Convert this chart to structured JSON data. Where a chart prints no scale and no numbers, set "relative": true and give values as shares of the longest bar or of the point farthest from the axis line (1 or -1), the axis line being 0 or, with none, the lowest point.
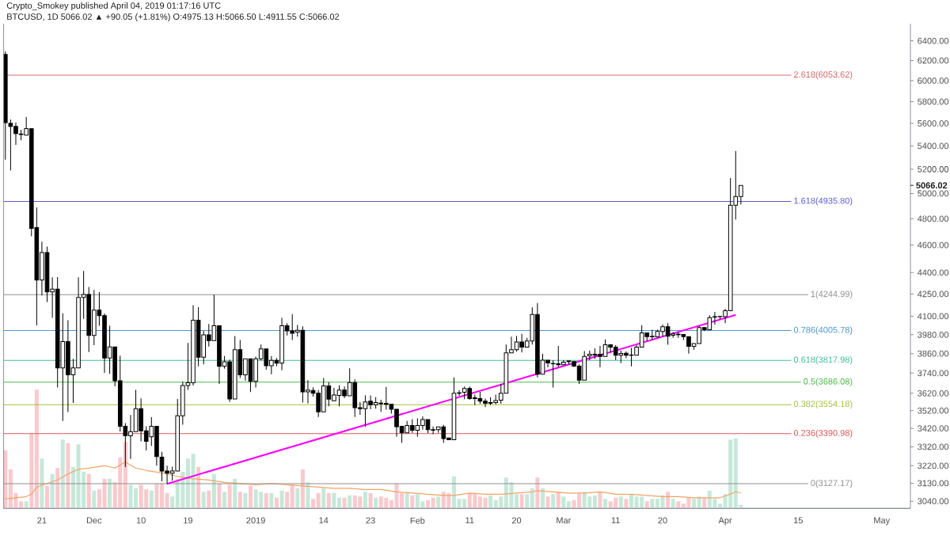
{
  "chart_data": [
    {
      "type": "candlestick",
      "title": "Crypto_Smokey published April 04, 2019 01:17:16 UTC",
      "subtitle": "BTCUSD, 1D 5066.02 ▲ +90.05 (+1.81%) O:4975.13 H:5066.50 L:4911.55 C:5066.02",
      "x": [
        "2018-11-14",
        "2018-11-15",
        "2018-11-16",
        "2018-11-17",
        "2018-11-18",
        "2018-11-19",
        "2018-11-20",
        "2018-11-21",
        "2018-11-22",
        "2018-11-23",
        "2018-11-24",
        "2018-11-25",
        "2018-11-26",
        "2018-11-27",
        "2018-11-28",
        "2018-11-29",
        "2018-11-30",
        "2018-12-01",
        "2018-12-02",
        "2018-12-03",
        "2018-12-04",
        "2018-12-05",
        "2018-12-06",
        "2018-12-07",
        "2018-12-08",
        "2018-12-09",
        "2018-12-10",
        "2018-12-11",
        "2018-12-12",
        "2018-12-13",
        "2018-12-14",
        "2018-12-15",
        "2018-12-16",
        "2018-12-17",
        "2018-12-18",
        "2018-12-19",
        "2018-12-20",
        "2018-12-21",
        "2018-12-22",
        "2018-12-23",
        "2018-12-24",
        "2018-12-25",
        "2018-12-26",
        "2018-12-27",
        "2018-12-28",
        "2018-12-29",
        "2018-12-30",
        "2018-12-31",
        "2019-01-01",
        "2019-01-02",
        "2019-01-03",
        "2019-01-04",
        "2019-01-05",
        "2019-01-06",
        "2019-01-07",
        "2019-01-08",
        "2019-01-09",
        "2019-01-10",
        "2019-01-11",
        "2019-01-12",
        "2019-01-13",
        "2019-01-14",
        "2019-01-15",
        "2019-01-16",
        "2019-01-17",
        "2019-01-18",
        "2019-01-19",
        "2019-01-20",
        "2019-01-21",
        "2019-01-22",
        "2019-01-23",
        "2019-01-24",
        "2019-01-25",
        "2019-01-26",
        "2019-01-27",
        "2019-01-28",
        "2019-01-29",
        "2019-01-30",
        "2019-01-31",
        "2019-02-01",
        "2019-02-02",
        "2019-02-03",
        "2019-02-04",
        "2019-02-05",
        "2019-02-06",
        "2019-02-07",
        "2019-02-08",
        "2019-02-09",
        "2019-02-10",
        "2019-02-11",
        "2019-02-12",
        "2019-02-13",
        "2019-02-14",
        "2019-02-15",
        "2019-02-16",
        "2019-02-17",
        "2019-02-18",
        "2019-02-19",
        "2019-02-20",
        "2019-02-21",
        "2019-02-22",
        "2019-02-23",
        "2019-02-24",
        "2019-02-25",
        "2019-02-26",
        "2019-02-27",
        "2019-02-28",
        "2019-03-01",
        "2019-03-02",
        "2019-03-03",
        "2019-03-04",
        "2019-03-05",
        "2019-03-06",
        "2019-03-07",
        "2019-03-08",
        "2019-03-09",
        "2019-03-10",
        "2019-03-11",
        "2019-03-12",
        "2019-03-13",
        "2019-03-14",
        "2019-03-15",
        "2019-03-16",
        "2019-03-17",
        "2019-03-18",
        "2019-03-19",
        "2019-03-20",
        "2019-03-21",
        "2019-03-22",
        "2019-03-23",
        "2019-03-24",
        "2019-03-25",
        "2019-03-26",
        "2019-03-27",
        "2019-03-28",
        "2019-03-29",
        "2019-03-30",
        "2019-03-31",
        "2019-04-01",
        "2019-04-02",
        "2019-04-03",
        "2019-04-04"
      ],
      "ohlc": [
        [
          6260,
          6290,
          5280,
          5607
        ],
        [
          5600,
          5636,
          5190,
          5573
        ],
        [
          5573,
          5608,
          5409,
          5508
        ],
        [
          5505,
          5542,
          5449,
          5500
        ],
        [
          5495,
          5658,
          5495,
          5552
        ],
        [
          5552,
          5552,
          4666,
          4726
        ],
        [
          4731,
          4889,
          4040,
          4347
        ],
        [
          4347,
          4626,
          4240,
          4545
        ],
        [
          4545,
          4588,
          4195,
          4265
        ],
        [
          4265,
          4366,
          4089,
          4284
        ],
        [
          4284,
          4368,
          3654,
          3772
        ],
        [
          3772,
          4120,
          3461,
          3936
        ],
        [
          3936,
          4073,
          3512,
          3730
        ],
        [
          3730,
          3828,
          3564,
          3772
        ],
        [
          3772,
          4366,
          3772,
          4226
        ],
        [
          4226,
          4411,
          4083,
          4247
        ],
        [
          4247,
          4299,
          3869,
          3975
        ],
        [
          3975,
          4278,
          3913,
          4140
        ],
        [
          4140,
          4263,
          4037,
          4104
        ],
        [
          4104,
          4118,
          3742,
          3832
        ],
        [
          3832,
          4037,
          3735,
          3902
        ],
        [
          3902,
          3902,
          3661,
          3694
        ],
        [
          3694,
          3847,
          3402,
          3432
        ],
        [
          3432,
          3449,
          3213,
          3379
        ],
        [
          3379,
          3495,
          3255,
          3402
        ],
        [
          3402,
          3640,
          3402,
          3531
        ],
        [
          3531,
          3590,
          3349,
          3407
        ],
        [
          3407,
          3432,
          3300,
          3349
        ],
        [
          3374,
          3483,
          3325,
          3432
        ],
        [
          3432,
          3432,
          3220,
          3268
        ],
        [
          3265,
          3293,
          3140,
          3192
        ],
        [
          3192,
          3220,
          3127,
          3181
        ],
        [
          3181,
          3215,
          3143,
          3192
        ],
        [
          3192,
          3587,
          3192,
          3491
        ],
        [
          3491,
          3688,
          3441,
          3666
        ],
        [
          3666,
          3927,
          3640,
          3682
        ],
        [
          3682,
          4174,
          3666,
          4073
        ],
        [
          4073,
          4160,
          3782,
          3837
        ],
        [
          3837,
          4004,
          3794,
          3979
        ],
        [
          3979,
          4049,
          3904,
          3942
        ],
        [
          3942,
          4245,
          3942,
          4037
        ],
        [
          4037,
          4037,
          3675,
          3782
        ],
        [
          3782,
          3845,
          3767,
          3809
        ],
        [
          3809,
          3822,
          3569,
          3587
        ],
        [
          3587,
          3971,
          3587,
          3885
        ],
        [
          3885,
          3946,
          3711,
          3730
        ],
        [
          3730,
          3828,
          3694,
          3828
        ],
        [
          3828,
          3828,
          3627,
          3690
        ],
        [
          3690,
          3841,
          3654,
          3828
        ],
        [
          3828,
          3917,
          3818,
          3889
        ],
        [
          3889,
          3889,
          3761,
          3785
        ],
        [
          3785,
          3845,
          3733,
          3818
        ],
        [
          3818,
          3832,
          3782,
          3800
        ],
        [
          3800,
          4089,
          3757,
          4037
        ],
        [
          4037,
          4054,
          3975,
          4004
        ],
        [
          4004,
          4114,
          3946,
          3990
        ],
        [
          3997,
          4042,
          3968,
          4007
        ],
        [
          4007,
          4033,
          3566,
          3628
        ],
        [
          3628,
          3698,
          3562,
          3639
        ],
        [
          3636,
          3655,
          3601,
          3620
        ],
        [
          3620,
          3639,
          3484,
          3513
        ],
        [
          3513,
          3711,
          3513,
          3663
        ],
        [
          3663,
          3686,
          3544,
          3586
        ],
        [
          3577,
          3652,
          3577,
          3609
        ],
        [
          3607,
          3667,
          3544,
          3639
        ],
        [
          3639,
          3660,
          3592,
          3605
        ],
        [
          3605,
          3770,
          3605,
          3683
        ],
        [
          3683,
          3702,
          3484,
          3536
        ],
        [
          3536,
          3570,
          3496,
          3531
        ],
        [
          3531,
          3607,
          3428,
          3570
        ],
        [
          3574,
          3607,
          3528,
          3554
        ],
        [
          3554,
          3597,
          3531,
          3566
        ],
        [
          3563,
          3582,
          3513,
          3559
        ],
        [
          3562,
          3657,
          3525,
          3556
        ],
        [
          3556,
          3556,
          3503,
          3528
        ],
        [
          3528,
          3528,
          3374,
          3429
        ],
        [
          3432,
          3432,
          3341,
          3396
        ],
        [
          3396,
          3462,
          3396,
          3436
        ],
        [
          3436,
          3472,
          3396,
          3410
        ],
        [
          3410,
          3476,
          3374,
          3436
        ],
        [
          3436,
          3487,
          3413,
          3469
        ],
        [
          3469,
          3469,
          3393,
          3413
        ],
        [
          3413,
          3431,
          3388,
          3410
        ],
        [
          3413,
          3428,
          3396,
          3428
        ],
        [
          3428,
          3440,
          3341,
          3364
        ],
        [
          3367,
          3367,
          3358,
          3358
        ],
        [
          3358,
          3714,
          3358,
          3620
        ],
        [
          3620,
          3639,
          3605,
          3623
        ],
        [
          3626,
          3660,
          3586,
          3648
        ],
        [
          3648,
          3660,
          3582,
          3589
        ],
        [
          3594,
          3612,
          3551,
          3589
        ],
        [
          3589,
          3628,
          3559,
          3574
        ],
        [
          3574,
          3589,
          3540,
          3562
        ],
        [
          3562,
          3597,
          3551,
          3566
        ],
        [
          3566,
          3612,
          3556,
          3578
        ],
        [
          3580,
          3674,
          3559,
          3620
        ],
        [
          3620,
          3917,
          3620,
          3865
        ],
        [
          3865,
          3968,
          3865,
          3884
        ],
        [
          3884,
          3973,
          3872,
          3934
        ],
        [
          3934,
          3985,
          3867,
          3901
        ],
        [
          3901,
          3960,
          3901,
          3939
        ],
        [
          3939,
          4159,
          3917,
          4111
        ],
        [
          4111,
          4189,
          3714,
          3733
        ],
        [
          3733,
          3860,
          3733,
          3819
        ],
        [
          3819,
          3819,
          3775,
          3802
        ],
        [
          3797,
          3819,
          3654,
          3799
        ],
        [
          3797,
          3909,
          3778,
          3791
        ],
        [
          3791,
          3819,
          3791,
          3807
        ],
        [
          3810,
          3815,
          3794,
          3815
        ],
        [
          3810,
          3810,
          3778,
          3783
        ],
        [
          3783,
          3794,
          3675,
          3698
        ],
        [
          3698,
          3876,
          3698,
          3843
        ],
        [
          3846,
          3880,
          3819,
          3856
        ],
        [
          3851,
          3893,
          3828,
          3856
        ],
        [
          3856,
          3909,
          3775,
          3843
        ],
        [
          3843,
          3949,
          3843,
          3916
        ],
        [
          3916,
          3916,
          3868,
          3901
        ],
        [
          3901,
          3913,
          3819,
          3849
        ],
        [
          3849,
          3880,
          3800,
          3861
        ],
        [
          3862,
          3873,
          3831,
          3849
        ],
        [
          3849,
          3896,
          3782,
          3851
        ],
        [
          3849,
          3913,
          3849,
          3901
        ],
        [
          3901,
          4041,
          3901,
          3992
        ],
        [
          3992,
          3992,
          3940,
          3968
        ],
        [
          3966,
          4011,
          3943,
          3970
        ],
        [
          3966,
          4011,
          3966,
          4000
        ],
        [
          4000,
          4045,
          3968,
          4031
        ],
        [
          4031,
          4054,
          3916,
          3970
        ],
        [
          3976,
          3997,
          3960,
          3985
        ],
        [
          3983,
          3997,
          3960,
          3980
        ],
        [
          3981,
          3981,
          3946,
          3968
        ],
        [
          3968,
          3968,
          3860,
          3906
        ],
        [
          3906,
          3923,
          3884,
          3923
        ],
        [
          3923,
          4036,
          3923,
          4025
        ],
        [
          4025,
          4025,
          4002,
          4011
        ],
        [
          4011,
          4106,
          4011,
          4090
        ],
        [
          4094,
          4129,
          4045,
          4097
        ],
        [
          4097,
          4099,
          4080,
          4099
        ],
        [
          4097,
          4150,
          4054,
          4136
        ],
        [
          4136,
          5126,
          4136,
          4906
        ],
        [
          4906,
          5355,
          4794,
          4976
        ],
        [
          4975.13,
          5066.5,
          4911.55,
          5066.02
        ]
      ],
      "series": [
        {
          "type": "line",
          "x": [
            "2018-12-15",
            "2019-04-03"
          ],
          "values": [
            3127,
            4109
          ],
          "color": "#ff00ff"
        }
      ],
      "xlim": [
        "2018-11-13T16:00",
        "2019-05-06T12:00"
      ],
      "xticks": [
        {
          "value": "2018-11-21",
          "label": "21"
        },
        {
          "value": "2018-12-01",
          "label": "Dec"
        },
        {
          "value": "2018-12-10",
          "label": "10"
        },
        {
          "value": "2018-12-19",
          "label": "19"
        },
        {
          "value": "2019-01-01",
          "label": "2019"
        },
        {
          "value": "2019-01-14",
          "label": "14"
        },
        {
          "value": "2019-01-23",
          "label": "23"
        },
        {
          "value": "2019-02-01",
          "label": "Feb"
        },
        {
          "value": "2019-02-11",
          "label": "11"
        },
        {
          "value": "2019-02-20",
          "label": "20"
        },
        {
          "value": "2019-03-01",
          "label": "Mar"
        },
        {
          "value": "2019-03-11",
          "label": "11"
        },
        {
          "value": "2019-03-20",
          "label": "20"
        },
        {
          "value": "2019-04-01",
          "label": "Apr"
        },
        {
          "value": "2019-04-15",
          "label": "15"
        },
        {
          "value": "2019-05-01",
          "label": "May"
        }
      ],
      "ylim": [
        3005,
        6580
      ],
      "log": true,
      "yticks": [
        {
          "value": 3040,
          "label": "3040.00"
        },
        {
          "value": 3130,
          "label": "3130.00"
        },
        {
          "value": 3220,
          "label": "3220.00"
        },
        {
          "value": 3320,
          "label": "3320.00"
        },
        {
          "value": 3420,
          "label": "3420.00"
        },
        {
          "value": 3520,
          "label": "3520.00"
        },
        {
          "value": 3620,
          "label": "3620.00"
        },
        {
          "value": 3740,
          "label": "3740.00"
        },
        {
          "value": 3860,
          "label": "3860.00"
        },
        {
          "value": 3980,
          "label": "3980.00"
        },
        {
          "value": 4100,
          "label": "4100.00"
        },
        {
          "value": 4250,
          "label": "4250.00"
        },
        {
          "value": 4400,
          "label": "4400.00"
        },
        {
          "value": 4600,
          "label": "4600.00"
        },
        {
          "value": 4800,
          "label": "4800.00"
        },
        {
          "value": 5000,
          "label": "5000.00"
        },
        {
          "value": 5200,
          "label": "5200.00"
        },
        {
          "value": 5400,
          "label": "5400.00"
        },
        {
          "value": 5600,
          "label": "5600.00"
        },
        {
          "value": 5800,
          "label": "5800.00"
        },
        {
          "value": 6000,
          "label": "6000.00"
        },
        {
          "value": 6200,
          "label": "6200.00"
        },
        {
          "value": 6400,
          "label": "6400.00"
        }
      ],
      "ref_lines": [
        {
          "axis": "y",
          "value": 6053.62,
          "label": "2.618(6053.62)",
          "color": "#e06666"
        },
        {
          "axis": "y",
          "value": 4935.8,
          "label": "1.618(4935.80)",
          "color": "#5b5bd6"
        },
        {
          "axis": "y",
          "value": 4244.99,
          "label": "1(4244.99)",
          "color": "#909090"
        },
        {
          "axis": "y",
          "value": 4005.78,
          "label": "0.786(4005.78)",
          "color": "#4a97d0"
        },
        {
          "axis": "y",
          "value": 3817.98,
          "label": "0.618(3817.98)",
          "color": "#3cbf9a"
        },
        {
          "axis": "y",
          "value": 3686.08,
          "label": "0.5(3686.08)",
          "color": "#4cbb4c"
        },
        {
          "axis": "y",
          "value": 3554.18,
          "label": "0.382(3554.18)",
          "color": "#a5c23c"
        },
        {
          "axis": "y",
          "value": 3390.98,
          "label": "0.236(3390.98)",
          "color": "#e05656"
        },
        {
          "axis": "y",
          "value": 3127.17,
          "label": "0(3127.17)",
          "color": "#909090"
        }
      ],
      "annotations": [
        "5066.02"
      ]
    },
    {
      "type": "bar",
      "relative": true,
      "x": [
        "2018-11-14",
        "2018-11-15",
        "2018-11-16",
        "2018-11-17",
        "2018-11-18",
        "2018-11-19",
        "2018-11-20",
        "2018-11-21",
        "2018-11-22",
        "2018-11-23",
        "2018-11-24",
        "2018-11-25",
        "2018-11-26",
        "2018-11-27",
        "2018-11-28",
        "2018-11-29",
        "2018-11-30",
        "2018-12-01",
        "2018-12-02",
        "2018-12-03",
        "2018-12-04",
        "2018-12-05",
        "2018-12-06",
        "2018-12-07",
        "2018-12-08",
        "2018-12-09",
        "2018-12-10",
        "2018-12-11",
        "2018-12-12",
        "2018-12-13",
        "2018-12-14",
        "2018-12-15",
        "2018-12-16",
        "2018-12-17",
        "2018-12-18",
        "2018-12-19",
        "2018-12-20",
        "2018-12-21",
        "2018-12-22",
        "2018-12-23",
        "2018-12-24",
        "2018-12-25",
        "2018-12-26",
        "2018-12-27",
        "2018-12-28",
        "2018-12-29",
        "2018-12-30",
        "2018-12-31",
        "2019-01-01",
        "2019-01-02",
        "2019-01-03",
        "2019-01-04",
        "2019-01-05",
        "2019-01-06",
        "2019-01-07",
        "2019-01-08",
        "2019-01-09",
        "2019-01-10",
        "2019-01-11",
        "2019-01-12",
        "2019-01-13",
        "2019-01-14",
        "2019-01-15",
        "2019-01-16",
        "2019-01-17",
        "2019-01-18",
        "2019-01-19",
        "2019-01-20",
        "2019-01-21",
        "2019-01-22",
        "2019-01-23",
        "2019-01-24",
        "2019-01-25",
        "2019-01-26",
        "2019-01-27",
        "2019-01-28",
        "2019-01-29",
        "2019-01-30",
        "2019-01-31",
        "2019-02-01",
        "2019-02-02",
        "2019-02-03",
        "2019-02-04",
        "2019-02-05",
        "2019-02-06",
        "2019-02-07",
        "2019-02-08",
        "2019-02-09",
        "2019-02-10",
        "2019-02-11",
        "2019-02-12",
        "2019-02-13",
        "2019-02-14",
        "2019-02-15",
        "2019-02-16",
        "2019-02-17",
        "2019-02-18",
        "2019-02-19",
        "2019-02-20",
        "2019-02-21",
        "2019-02-22",
        "2019-02-23",
        "2019-02-24",
        "2019-02-25",
        "2019-02-26",
        "2019-02-27",
        "2019-02-28",
        "2019-03-01",
        "2019-03-02",
        "2019-03-03",
        "2019-03-04",
        "2019-03-05",
        "2019-03-06",
        "2019-03-07",
        "2019-03-08",
        "2019-03-09",
        "2019-03-10",
        "2019-03-11",
        "2019-03-12",
        "2019-03-13",
        "2019-03-14",
        "2019-03-15",
        "2019-03-16",
        "2019-03-17",
        "2019-03-18",
        "2019-03-19",
        "2019-03-20",
        "2019-03-21",
        "2019-03-22",
        "2019-03-23",
        "2019-03-24",
        "2019-03-25",
        "2019-03-26",
        "2019-03-27",
        "2019-03-28",
        "2019-03-29",
        "2019-03-30",
        "2019-03-31",
        "2019-04-01",
        "2019-04-02",
        "2019-04-03",
        "2019-04-04"
      ],
      "xlim": [
        "2018-11-13T16:00",
        "2019-05-06T12:00"
      ],
      "series": [
        {
          "values": [
            0.49,
            0.33,
            0.13,
            0.06,
            0.06,
            0.63,
            1,
            0.42,
            0.19,
            0.29,
            0.34,
            0.58,
            0.55,
            0.35,
            0.54,
            0.31,
            0.29,
            0.15,
            0.16,
            0.25,
            0.25,
            0.22,
            0.43,
            0.56,
            0.2,
            0.17,
            0.2,
            0.16,
            0.15,
            0.21,
            0.21,
            0.13,
            0.1,
            0.25,
            0.31,
            0.42,
            0.46,
            0.35,
            0.14,
            0.15,
            0.29,
            0.21,
            0.14,
            0.2,
            0.25,
            0.14,
            0.13,
            0.19,
            0.16,
            0.14,
            0.13,
            0.13,
            0.09,
            0.15,
            0.14,
            0.2,
            0.17,
            0.33,
            0.22,
            0.08,
            0.13,
            0.17,
            0.13,
            0.13,
            0.09,
            0.09,
            0.11,
            0.11,
            0.1,
            0.14,
            0.13,
            0.09,
            0.1,
            0.09,
            0.07,
            0.21,
            0.13,
            0.13,
            0.11,
            0.12,
            0.06,
            0.07,
            0.09,
            0.1,
            0.14,
            0.13,
            0.27,
            0.08,
            0.08,
            0.13,
            0.13,
            0.1,
            0.09,
            0.11,
            0.07,
            0.1,
            0.26,
            0.22,
            0.12,
            0.12,
            0.12,
            0.17,
            0.26,
            0.17,
            0.1,
            0.12,
            0.14,
            0.1,
            0.06,
            0.07,
            0.13,
            0.14,
            0.1,
            0.11,
            0.14,
            0.08,
            0.06,
            0.09,
            0.1,
            0.08,
            0.12,
            0.1,
            0.1,
            0.06,
            0.08,
            0.08,
            0.11,
            0.14,
            0.08,
            0.06,
            0.04,
            0.09,
            0.08,
            0.1,
            0.09,
            0.15,
            0.08,
            0.04,
            0.12,
            0.58,
            0.59,
            0.03
          ],
          "colors": [
            "#f9c9cd",
            "#f9c9cd",
            "#f9c9cd",
            "#f9c9cd",
            "#c6e8d9",
            "#f9c9cd",
            "#f9c9cd",
            "#c6e8d9",
            "#f9c9cd",
            "#c6e8d9",
            "#f9c9cd",
            "#c6e8d9",
            "#f9c9cd",
            "#c6e8d9",
            "#c6e8d9",
            "#c6e8d9",
            "#f9c9cd",
            "#c6e8d9",
            "#f9c9cd",
            "#f9c9cd",
            "#c6e8d9",
            "#f9c9cd",
            "#f9c9cd",
            "#f9c9cd",
            "#c6e8d9",
            "#c6e8d9",
            "#f9c9cd",
            "#f9c9cd",
            "#c6e8d9",
            "#f9c9cd",
            "#f9c9cd",
            "#f9c9cd",
            "#c6e8d9",
            "#c6e8d9",
            "#c6e8d9",
            "#c6e8d9",
            "#c6e8d9",
            "#f9c9cd",
            "#c6e8d9",
            "#f9c9cd",
            "#c6e8d9",
            "#f9c9cd",
            "#c6e8d9",
            "#f9c9cd",
            "#c6e8d9",
            "#f9c9cd",
            "#c6e8d9",
            "#f9c9cd",
            "#c6e8d9",
            "#c6e8d9",
            "#f9c9cd",
            "#c6e8d9",
            "#f9c9cd",
            "#c6e8d9",
            "#f9c9cd",
            "#f9c9cd",
            "#c6e8d9",
            "#f9c9cd",
            "#c6e8d9",
            "#f9c9cd",
            "#f9c9cd",
            "#c6e8d9",
            "#f9c9cd",
            "#c6e8d9",
            "#c6e8d9",
            "#f9c9cd",
            "#c6e8d9",
            "#f9c9cd",
            "#f9c9cd",
            "#c6e8d9",
            "#f9c9cd",
            "#c6e8d9",
            "#f9c9cd",
            "#f9c9cd",
            "#f9c9cd",
            "#f9c9cd",
            "#f9c9cd",
            "#c6e8d9",
            "#f9c9cd",
            "#c6e8d9",
            "#c6e8d9",
            "#f9c9cd",
            "#f9c9cd",
            "#c6e8d9",
            "#f9c9cd",
            "#f9c9cd",
            "#c6e8d9",
            "#c6e8d9",
            "#c6e8d9",
            "#f9c9cd",
            "#f9c9cd",
            "#f9c9cd",
            "#f9c9cd",
            "#c6e8d9",
            "#c6e8d9",
            "#c6e8d9",
            "#c6e8d9",
            "#c6e8d9",
            "#c6e8d9",
            "#f9c9cd",
            "#c6e8d9",
            "#c6e8d9",
            "#f9c9cd",
            "#c6e8d9",
            "#f9c9cd",
            "#c6e8d9",
            "#f9c9cd",
            "#c6e8d9",
            "#c6e8d9",
            "#f9c9cd",
            "#f9c9cd",
            "#c6e8d9",
            "#c6e8d9",
            "#c6e8d9",
            "#f9c9cd",
            "#c6e8d9",
            "#f9c9cd",
            "#f9c9cd",
            "#c6e8d9",
            "#f9c9cd",
            "#c6e8d9",
            "#c6e8d9",
            "#c6e8d9",
            "#f9c9cd",
            "#c6e8d9",
            "#c6e8d9",
            "#c6e8d9",
            "#f9c9cd",
            "#c6e8d9",
            "#f9c9cd",
            "#f9c9cd",
            "#f9c9cd",
            "#c6e8d9",
            "#c6e8d9",
            "#f9c9cd",
            "#c6e8d9",
            "#c6e8d9",
            "#c6e8d9",
            "#c6e8d9",
            "#c6e8d9",
            "#c6e8d9",
            "#c6e8d9"
          ]
        },
        {
          "type": "line",
          "color": "#f5a264",
          "x": [
            "2018-11-14",
            "2018-11-18",
            "2018-11-19",
            "2018-11-20",
            "2018-11-22",
            "2018-11-24",
            "2018-11-26",
            "2018-11-28",
            "2018-11-30",
            "2018-12-03",
            "2018-12-05",
            "2018-12-07",
            "2018-12-09",
            "2018-12-11",
            "2018-12-14",
            "2018-12-17",
            "2018-12-20",
            "2018-12-23",
            "2018-12-26",
            "2018-12-29",
            "2019-01-01",
            "2019-01-04",
            "2019-01-07",
            "2019-01-10",
            "2019-01-13",
            "2019-01-16",
            "2019-01-19",
            "2019-01-22",
            "2019-01-25",
            "2019-01-28",
            "2019-01-31",
            "2019-02-03",
            "2019-02-06",
            "2019-02-08",
            "2019-02-11",
            "2019-02-14",
            "2019-02-17",
            "2019-02-20",
            "2019-02-23",
            "2019-02-24",
            "2019-02-27",
            "2019-03-02",
            "2019-03-05",
            "2019-03-08",
            "2019-03-11",
            "2019-03-14",
            "2019-03-17",
            "2019-03-20",
            "2019-03-23",
            "2019-03-26",
            "2019-03-28",
            "2019-03-31",
            "2019-04-02",
            "2019-04-03",
            "2019-04-04"
          ],
          "values": [
            0.08,
            0.1,
            0.12,
            0.18,
            0.21,
            0.24,
            0.29,
            0.33,
            0.34,
            0.36,
            0.34,
            0.39,
            0.34,
            0.32,
            0.3,
            0.27,
            0.25,
            0.24,
            0.22,
            0.21,
            0.2,
            0.21,
            0.2,
            0.19,
            0.18,
            0.17,
            0.17,
            0.16,
            0.16,
            0.14,
            0.13,
            0.12,
            0.11,
            0.11,
            0.13,
            0.12,
            0.12,
            0.13,
            0.14,
            0.15,
            0.14,
            0.13,
            0.13,
            0.14,
            0.12,
            0.12,
            0.11,
            0.1,
            0.1,
            0.09,
            0.09,
            0.09,
            0.12,
            0.14,
            0.13
          ]
        }
      ]
    }
  ]
}
